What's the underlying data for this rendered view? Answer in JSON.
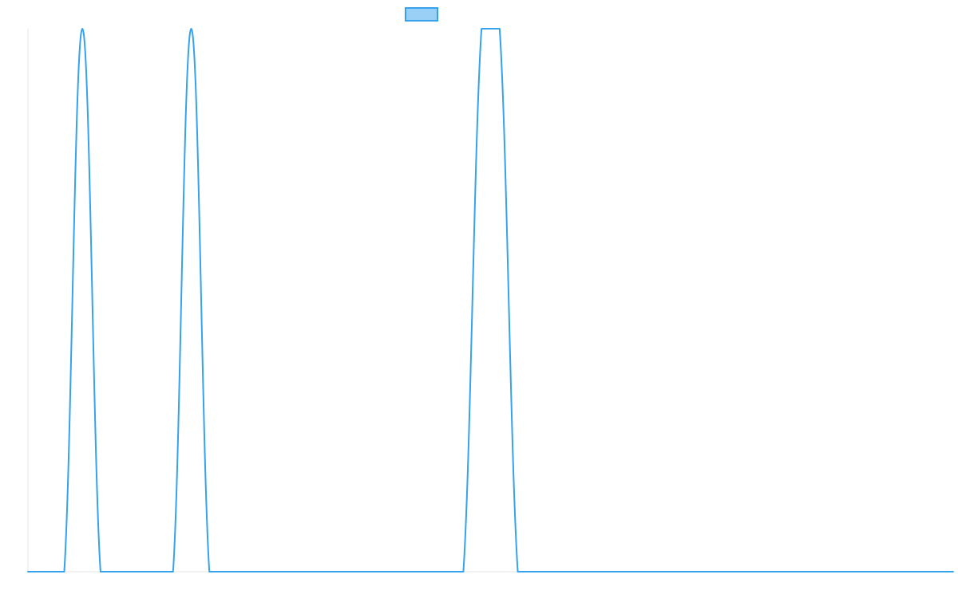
{
  "chart_data": {
    "type": "line",
    "title": "",
    "xlabel": "",
    "ylabel": "",
    "x": [
      0,
      1,
      2,
      3,
      4,
      5,
      6,
      7,
      8,
      9,
      10,
      11,
      12,
      13,
      14,
      15,
      16,
      17,
      18,
      19,
      20,
      21,
      22,
      23,
      24,
      25,
      26,
      27,
      28,
      29,
      30,
      31,
      32,
      33,
      34,
      35,
      36,
      37,
      38,
      39,
      40,
      41,
      42,
      43,
      44,
      45,
      46,
      47,
      48,
      49,
      50,
      51
    ],
    "xlim": [
      0,
      51
    ],
    "ylim": [
      0,
      1
    ],
    "grid": false,
    "legend_position": "top",
    "series": [
      {
        "name": "",
        "color": "#36a2eb",
        "values": [
          0,
          0,
          0,
          1,
          0,
          0,
          0,
          0,
          0,
          1,
          0,
          0,
          0,
          0,
          0,
          0,
          0,
          0,
          0,
          0,
          0,
          0,
          0,
          0,
          0,
          1,
          1,
          0,
          0,
          0,
          0,
          0,
          0,
          0,
          0,
          0,
          0,
          0,
          0,
          0,
          0,
          0,
          0,
          0,
          0,
          0,
          0,
          0,
          0,
          0,
          0,
          0
        ]
      }
    ]
  }
}
